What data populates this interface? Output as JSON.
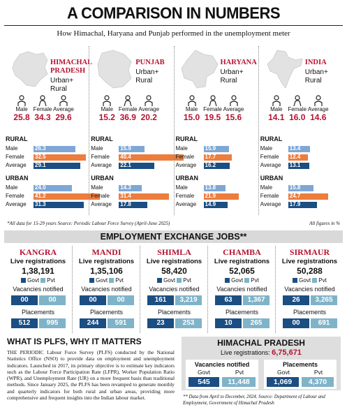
{
  "title": "A COMPARISON IN NUMBERS",
  "subtitle": "How Himachal, Haryana and Punjab performed in the unemployment meter",
  "states": [
    {
      "name": "HIMACHAL PRADESH",
      "line1": "HIMACHAL",
      "line2": "PRADESH",
      "area": "Urban+ Rural",
      "area1": "Urban+",
      "area2": "Rural",
      "male": "25.8",
      "female": "34.3",
      "average": "29.6",
      "rural": {
        "male": 26.3,
        "female": 32.5,
        "average": 29.1
      },
      "urban": {
        "male": 24.0,
        "female": 41.2,
        "average": 31.3
      }
    },
    {
      "name": "PUNJAB",
      "line1": "PUNJAB",
      "line2": "",
      "area1": "Urban+",
      "area2": "Rural",
      "male": "15.2",
      "female": "36.9",
      "average": "20.2",
      "rural": {
        "male": 15.9,
        "female": 40.4,
        "average": 22.1
      },
      "urban": {
        "male": 14.3,
        "female": 31.4,
        "average": 17.8
      }
    },
    {
      "name": "HARYANA",
      "line1": "HARYANA",
      "line2": "",
      "area1": "Urban+",
      "area2": "Rural",
      "male": "15.0",
      "female": "19.5",
      "average": "15.6",
      "rural": {
        "male": 15.9,
        "female": 17.7,
        "average": 16.2
      },
      "urban": {
        "male": 13.8,
        "female": 21.9,
        "average": 14.9
      }
    },
    {
      "name": "INDIA",
      "line1": "INDIA",
      "line2": "",
      "area1": "Urban+",
      "area2": "Rural",
      "male": "14.1",
      "female": "16.0",
      "average": "14.6",
      "rural": {
        "male": 13.4,
        "female": 12.4,
        "average": 13.1
      },
      "urban": {
        "male": 15.8,
        "female": 24.7,
        "average": 17.9
      }
    }
  ],
  "labels": {
    "male": "Male",
    "female": "Female",
    "average": "Average",
    "rural": "RURAL",
    "urban": "URBAN",
    "note_left": "*All data for 15-29 years   Source: Periodic Labour Force Survey (April-June 2025)",
    "note_right": "All figures in %"
  },
  "colors": {
    "male": "#7fa7d6",
    "female": "#ed7d3d",
    "average": "#1b4e82",
    "accent": "#b5122f",
    "govt": "#1b4e82",
    "pvt": "#7fb3c8"
  },
  "jobs_title": "EMPLOYMENT EXCHANGE JOBS**",
  "jobs_labels": {
    "live": "Live registrations",
    "govt": "Govt",
    "pvt": "Pvt",
    "vacancies": "Vacancies notified",
    "placements": "Placements"
  },
  "districts": [
    {
      "name": "KANGRA",
      "live": "1,38,191",
      "vac_govt": "00",
      "vac_pvt": "00",
      "pl_govt": "512",
      "pl_pvt": "995"
    },
    {
      "name": "MANDI",
      "live": "1,35,106",
      "vac_govt": "00",
      "vac_pvt": "00",
      "pl_govt": "244",
      "pl_pvt": "591"
    },
    {
      "name": "SHIMLA",
      "live": "58,420",
      "vac_govt": "161",
      "vac_pvt": "3,219",
      "pl_govt": "23",
      "pl_pvt": "253"
    },
    {
      "name": "CHAMBA",
      "live": "52,065",
      "vac_govt": "63",
      "vac_pvt": "1,367",
      "pl_govt": "10",
      "pl_pvt": "265"
    },
    {
      "name": "SIRMAUR",
      "live": "50,288",
      "vac_govt": "26",
      "vac_pvt": "3,265",
      "pl_govt": "00",
      "pl_pvt": "691"
    }
  ],
  "plfs": {
    "heading": "WHAT IS PLFS, WHY IT MATTERS",
    "body": "THE PERIODIC Labour Force Survey (PLFS) conducted by the National Statistics Office (NSO) to provide data on employment and unemployment indicators. Launched in 2017, its primary objective is to estimate key indicators such as the Labour Force Participation Rate (LFPR), Worker Population Ratio (WPR), and Unemployment Rate (UR) on a more frequent basis than traditional methods. Since January 2025, the PLFS has been revamped to generate monthly and quarterly indicators for both rural and urban areas, providing more comprehensive and frequent insights into the Indian labour market."
  },
  "hp_summary": {
    "title": "HIMACHAL PRADESH",
    "live_label": "Live registrations:",
    "live": "6,75,671",
    "vac_label": "Vacancies notified",
    "pl_label": "Placements",
    "govt": "Govt",
    "pvt": "Pvt",
    "vac_govt": "545",
    "vac_pvt": "11,448",
    "pl_govt": "1,069",
    "pl_pvt": "4,370"
  },
  "footnote": "** Data from April to December, 2024. Source: Department of Labour and Employment, Government of Himachal Pradesh",
  "chart_data": {
    "type": "bar",
    "categories": [
      "Rural Male",
      "Rural Female",
      "Rural Average",
      "Urban Male",
      "Urban Female",
      "Urban Average"
    ],
    "series": [
      {
        "name": "HIMACHAL PRADESH",
        "values": [
          26.3,
          32.5,
          29.1,
          24.0,
          41.2,
          31.3
        ]
      },
      {
        "name": "PUNJAB",
        "values": [
          15.9,
          40.4,
          22.1,
          14.3,
          31.4,
          17.8
        ]
      },
      {
        "name": "HARYANA",
        "values": [
          15.9,
          17.7,
          16.2,
          13.8,
          21.9,
          14.9
        ]
      },
      {
        "name": "INDIA",
        "values": [
          13.4,
          12.4,
          13.1,
          15.8,
          24.7,
          17.9
        ]
      }
    ],
    "xlabel": "",
    "ylabel": "",
    "xlim": [
      0,
      42
    ]
  }
}
